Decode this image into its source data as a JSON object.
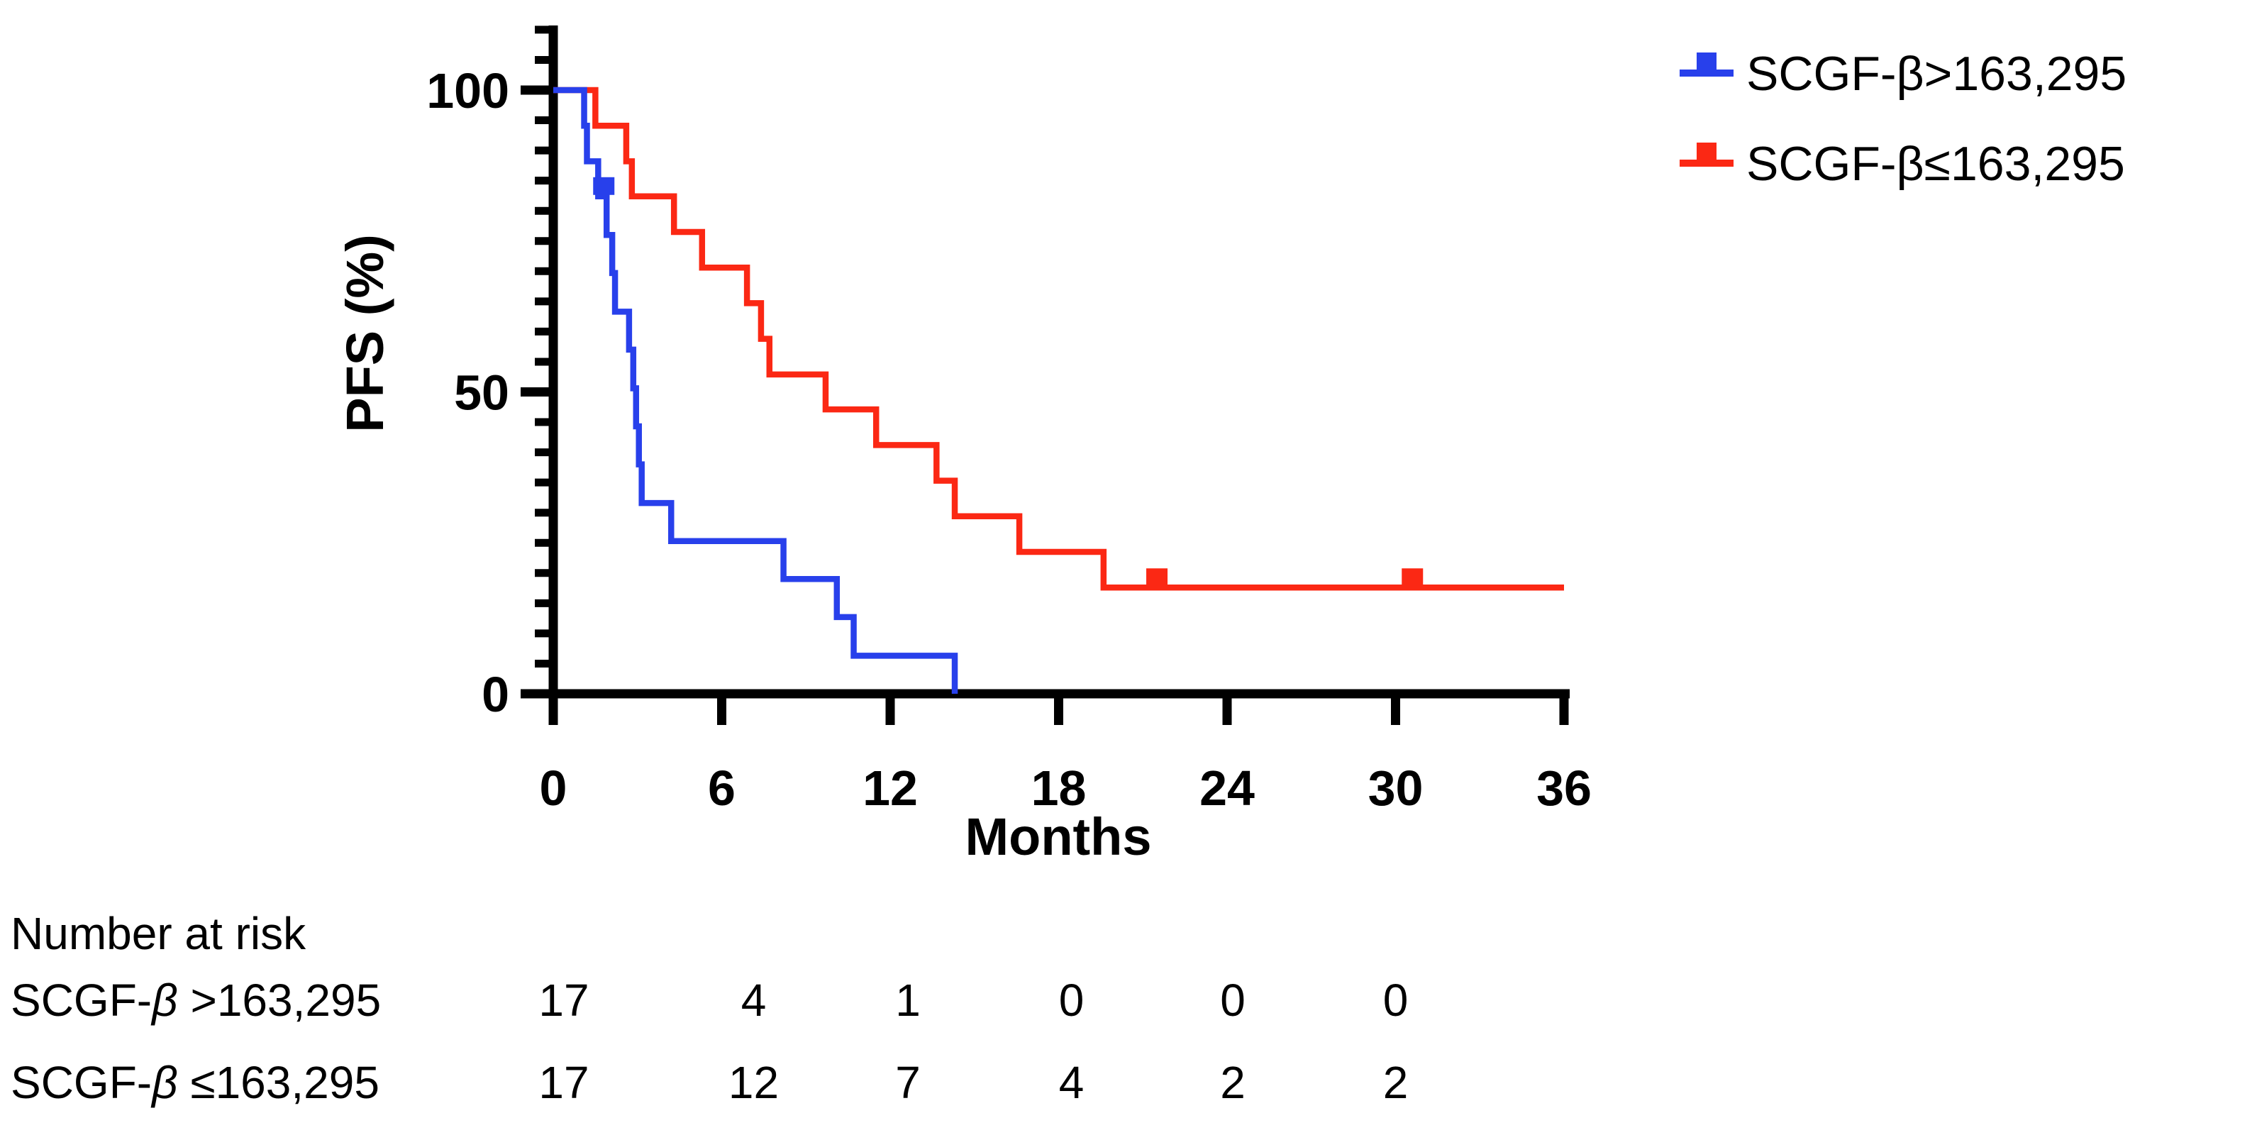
{
  "figure": {
    "background": "#ffffff",
    "axis_color": "#000000"
  },
  "chart_data": {
    "type": "line",
    "subtype": "kaplan-meier-step",
    "title": "",
    "xlabel": "Months",
    "ylabel": "PFS (%)",
    "xlim": [
      0,
      36
    ],
    "ylim": [
      0,
      100
    ],
    "x_ticks": [
      0,
      6,
      12,
      18,
      24,
      30,
      36
    ],
    "y_ticks": [
      0,
      50,
      100
    ],
    "y_minor_step": 5,
    "y_axis_top_value": 110,
    "grid": false,
    "legend_position": "top-right",
    "series": [
      {
        "name": "SCGF-β>163,295",
        "color": "#2840EB",
        "steps": [
          [
            0,
            100
          ],
          [
            1.1,
            94.1
          ],
          [
            1.2,
            88.2
          ],
          [
            1.6,
            82.4
          ],
          [
            1.9,
            76.0
          ],
          [
            2.1,
            69.7
          ],
          [
            2.2,
            63.3
          ],
          [
            2.7,
            57.0
          ],
          [
            2.85,
            50.6
          ],
          [
            2.95,
            44.3
          ],
          [
            3.05,
            38.0
          ],
          [
            3.15,
            31.6
          ],
          [
            4.2,
            25.3
          ],
          [
            8.2,
            19.0
          ],
          [
            10.1,
            12.7
          ],
          [
            10.7,
            6.3
          ],
          [
            14.3,
            0
          ]
        ],
        "censors": [
          [
            1.8,
            82.4
          ]
        ],
        "end_time": 14.3
      },
      {
        "name": "SCGF-β≤163,295",
        "color": "#FB2814",
        "steps": [
          [
            0,
            100
          ],
          [
            1.5,
            94.1
          ],
          [
            2.6,
            88.2
          ],
          [
            2.8,
            82.4
          ],
          [
            4.3,
            76.5
          ],
          [
            5.3,
            70.6
          ],
          [
            6.9,
            64.7
          ],
          [
            7.4,
            58.8
          ],
          [
            7.7,
            52.9
          ],
          [
            9.7,
            47.1
          ],
          [
            11.5,
            41.2
          ],
          [
            13.65,
            35.3
          ],
          [
            14.3,
            29.4
          ],
          [
            16.6,
            23.5
          ],
          [
            19.6,
            17.6
          ]
        ],
        "censors": [
          [
            21.5,
            17.6
          ],
          [
            30.6,
            17.6
          ]
        ],
        "end_time": 36
      }
    ]
  },
  "legend": {
    "items": [
      {
        "label": "SCGF-β>163,295",
        "color": "#2840EB"
      },
      {
        "label": "SCGF-β≤163,295",
        "color": "#FB2814"
      }
    ]
  },
  "risk_table": {
    "title": "Number at risk",
    "time_points": [
      0,
      6,
      12,
      18,
      24,
      30
    ],
    "rows": [
      {
        "label": "SCGF-β>163,295",
        "counts": [
          "17",
          "4",
          "1",
          "0",
          "0",
          "0"
        ]
      },
      {
        "label": "SCGF-β≤163,295",
        "counts": [
          "17",
          "12",
          "7",
          "4",
          "2",
          "2"
        ]
      }
    ]
  }
}
